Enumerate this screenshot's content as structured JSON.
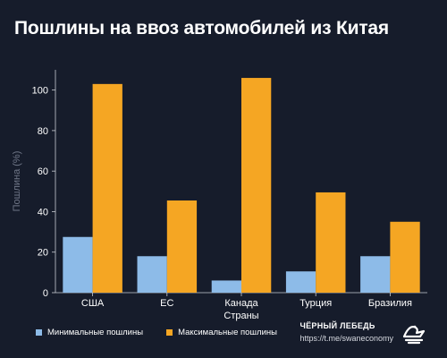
{
  "title": "Пошлины на ввоз автомобилей из Китая",
  "brand": {
    "name": "ЧЁРНЫЙ ЛЕБЕДЬ",
    "url": "https://t.me/swaneconomy",
    "logo_icon": "swan-logo-icon"
  },
  "colors": {
    "background": "#161c2b",
    "min": "#8dbbe8",
    "max": "#f5a623",
    "axis": "#c9ccd3",
    "grid": "#2a3142"
  },
  "chart_data": {
    "type": "bar",
    "title": "Пошлины на ввоз автомобилей из Китая",
    "xlabel": "Страны",
    "ylabel": "Пошлина (%)",
    "categories": [
      "США",
      "ЕС",
      "Канада",
      "Турция",
      "Бразилия"
    ],
    "series": [
      {
        "name": "Минимальные пошлины",
        "values": [
          27.5,
          18,
          6,
          10.5,
          18
        ]
      },
      {
        "name": "Максимальные пошлины",
        "values": [
          103,
          45.5,
          106,
          49.5,
          35
        ]
      }
    ],
    "ylim": [
      0,
      110
    ],
    "yticks": [
      0,
      20,
      40,
      60,
      80,
      100
    ],
    "grid": false,
    "legend_position": "bottom-left"
  }
}
